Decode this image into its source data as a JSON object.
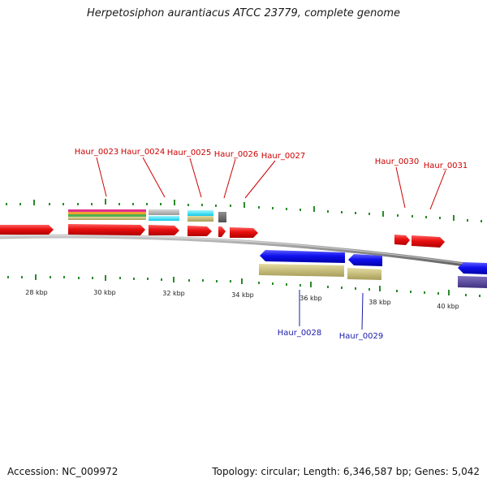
{
  "title": "Herpetosiphon aurantiacus ATCC 23779, complete genome",
  "accession": "Accession: NC_009972",
  "summary": "Topology: circular; Length: 6,346,587 bp; Genes: 5,042",
  "kbp_labels": [
    "28 kbp",
    "30 kbp",
    "32 kbp",
    "34 kbp",
    "36 kbp",
    "38 kbp",
    "40 kbp"
  ],
  "forward_gene_labels": [
    "Haur_0023",
    "Haur_0024",
    "Haur_0025",
    "Haur_0026",
    "Haur_0027",
    "Haur_0030",
    "Haur_0031"
  ],
  "reverse_gene_labels": [
    "Haur_0028",
    "Haur_0029"
  ],
  "colors": {
    "forward_gene": "#e01010",
    "reverse_gene": "#1010e0",
    "backbone": "#888888",
    "tick": "#2a8a2a",
    "label_forward": "#cc0000",
    "label_reverse": "#1a1aaa"
  }
}
